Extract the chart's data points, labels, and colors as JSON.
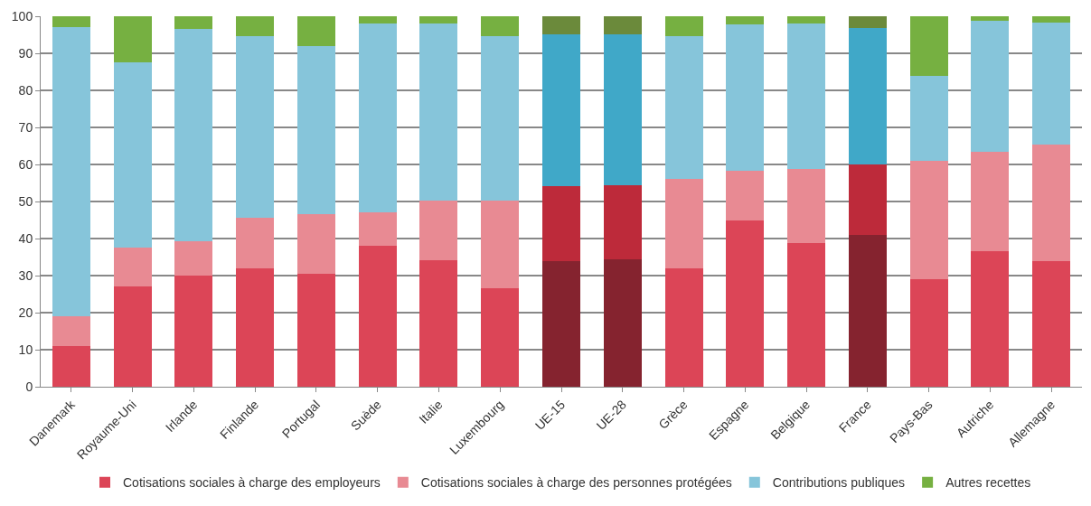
{
  "chart_data": {
    "type": "bar",
    "stacked": true,
    "categories": [
      "Danemark",
      "Royaume-Uni",
      "Irlande",
      "Finlande",
      "Portugal",
      "Suède",
      "Italie",
      "Luxembourg",
      "UE-15",
      "UE-28",
      "Grèce",
      "Espagne",
      "Belgique",
      "France",
      "Pays-Bas",
      "Autriche",
      "Allemagne"
    ],
    "series": [
      {
        "name": "Cotisations sociales à charge des employeurs",
        "values": [
          11,
          27,
          30,
          32,
          30.5,
          38,
          34.2,
          26.5,
          34,
          34.5,
          32,
          45,
          38.7,
          41,
          29,
          36.5,
          34
        ],
        "colors": [
          "#dc4557",
          "#dc4557",
          "#dc4557",
          "#dc4557",
          "#dc4557",
          "#dc4557",
          "#dc4557",
          "#dc4557",
          "#85232f",
          "#85232f",
          "#dc4557",
          "#dc4557",
          "#dc4557",
          "#85232f",
          "#dc4557",
          "#dc4557",
          "#dc4557"
        ]
      },
      {
        "name": "Cotisations sociales à charge des personnes protégées",
        "values": [
          8,
          10.5,
          9.3,
          13.7,
          16,
          9,
          16,
          23.7,
          20.2,
          20,
          24,
          13.2,
          20,
          19,
          32,
          27,
          31.3
        ],
        "colors": [
          "#e88a93",
          "#e88a93",
          "#e88a93",
          "#e88a93",
          "#e88a93",
          "#e88a93",
          "#e88a93",
          "#e88a93",
          "#bd2a3a",
          "#bd2a3a",
          "#e88a93",
          "#e88a93",
          "#e88a93",
          "#bd2a3a",
          "#e88a93",
          "#e88a93",
          "#e88a93"
        ]
      },
      {
        "name": "Contributions publiques",
        "values": [
          78,
          50,
          57.2,
          49,
          45.5,
          51,
          47.8,
          44.5,
          41,
          40.7,
          38.7,
          39.6,
          39.3,
          36.8,
          23,
          35.3,
          33
        ],
        "colors": [
          "#86c5da",
          "#86c5da",
          "#86c5da",
          "#86c5da",
          "#86c5da",
          "#86c5da",
          "#86c5da",
          "#86c5da",
          "#40a8c8",
          "#40a8c8",
          "#86c5da",
          "#86c5da",
          "#86c5da",
          "#40a8c8",
          "#86c5da",
          "#86c5da",
          "#86c5da"
        ]
      },
      {
        "name": "Autres recettes",
        "values": [
          3,
          12.5,
          3.5,
          5.3,
          8,
          2,
          2,
          5.3,
          4.8,
          4.8,
          5.3,
          2.2,
          2,
          3.2,
          16,
          1.2,
          1.7
        ],
        "colors": [
          "#76b041",
          "#76b041",
          "#76b041",
          "#76b041",
          "#76b041",
          "#76b041",
          "#76b041",
          "#76b041",
          "#6b8a3b",
          "#6b8a3b",
          "#76b041",
          "#76b041",
          "#76b041",
          "#6b8a3b",
          "#76b041",
          "#76b041",
          "#76b041"
        ]
      }
    ],
    "ylim": [
      0,
      100
    ],
    "yticks": [
      0,
      10,
      20,
      30,
      40,
      50,
      60,
      70,
      80,
      90,
      100
    ],
    "grid": "y",
    "legend": "bottom"
  }
}
